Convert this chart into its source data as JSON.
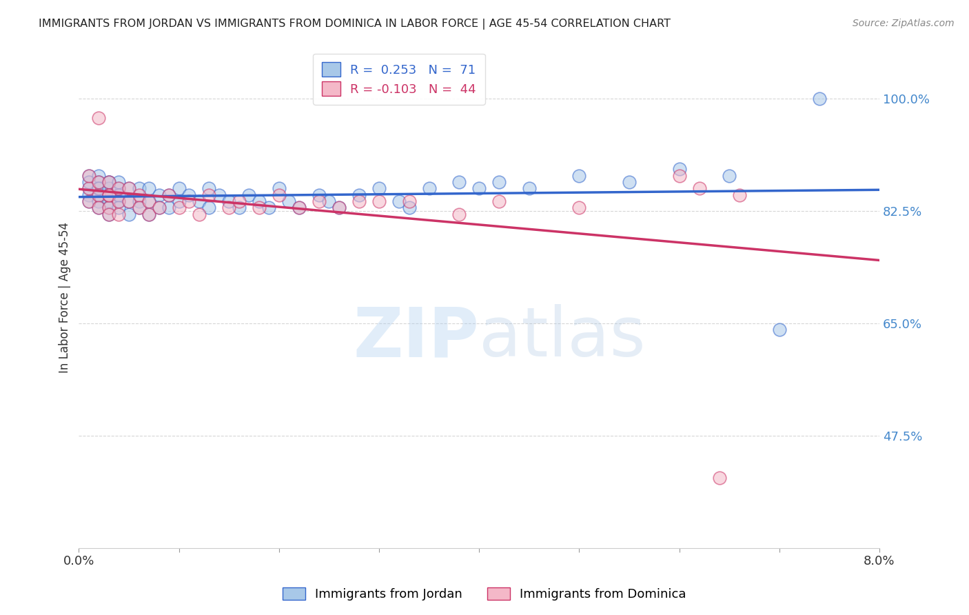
{
  "title": "IMMIGRANTS FROM JORDAN VS IMMIGRANTS FROM DOMINICA IN LABOR FORCE | AGE 45-54 CORRELATION CHART",
  "source": "Source: ZipAtlas.com",
  "ylabel": "In Labor Force | Age 45-54",
  "xlim": [
    0.0,
    0.08
  ],
  "ylim": [
    0.3,
    1.08
  ],
  "xticks": [
    0.0,
    0.01,
    0.02,
    0.03,
    0.04,
    0.05,
    0.06,
    0.07,
    0.08
  ],
  "xticklabels": [
    "0.0%",
    "",
    "",
    "",
    "",
    "",
    "",
    "",
    "8.0%"
  ],
  "ytick_positions": [
    0.475,
    0.65,
    0.825,
    1.0
  ],
  "ytick_labels": [
    "47.5%",
    "65.0%",
    "82.5%",
    "100.0%"
  ],
  "jordan_R": 0.253,
  "jordan_N": 71,
  "dominica_R": -0.103,
  "dominica_N": 44,
  "jordan_color": "#a8c8e8",
  "dominica_color": "#f4b8c8",
  "jordan_line_color": "#3366cc",
  "dominica_line_color": "#cc3366",
  "legend_label_jordan": "Immigrants from Jordan",
  "legend_label_dominica": "Immigrants from Dominica",
  "background_color": "#ffffff",
  "grid_color": "#cccccc",
  "jordan_x": [
    0.001,
    0.001,
    0.001,
    0.001,
    0.001,
    0.002,
    0.002,
    0.002,
    0.002,
    0.002,
    0.002,
    0.002,
    0.003,
    0.003,
    0.003,
    0.003,
    0.003,
    0.003,
    0.003,
    0.003,
    0.004,
    0.004,
    0.004,
    0.004,
    0.004,
    0.005,
    0.005,
    0.005,
    0.006,
    0.006,
    0.006,
    0.007,
    0.007,
    0.007,
    0.008,
    0.008,
    0.009,
    0.009,
    0.01,
    0.01,
    0.011,
    0.012,
    0.013,
    0.013,
    0.014,
    0.015,
    0.016,
    0.017,
    0.018,
    0.019,
    0.02,
    0.021,
    0.022,
    0.024,
    0.025,
    0.026,
    0.028,
    0.03,
    0.032,
    0.033,
    0.035,
    0.038,
    0.04,
    0.042,
    0.045,
    0.05,
    0.055,
    0.06,
    0.065,
    0.07,
    0.074
  ],
  "jordan_y": [
    0.86,
    0.88,
    0.85,
    0.87,
    0.84,
    0.88,
    0.86,
    0.85,
    0.87,
    0.84,
    0.86,
    0.83,
    0.87,
    0.85,
    0.84,
    0.86,
    0.83,
    0.87,
    0.85,
    0.82,
    0.86,
    0.84,
    0.87,
    0.85,
    0.83,
    0.86,
    0.84,
    0.82,
    0.86,
    0.84,
    0.83,
    0.86,
    0.84,
    0.82,
    0.85,
    0.83,
    0.85,
    0.83,
    0.86,
    0.84,
    0.85,
    0.84,
    0.86,
    0.83,
    0.85,
    0.84,
    0.83,
    0.85,
    0.84,
    0.83,
    0.86,
    0.84,
    0.83,
    0.85,
    0.84,
    0.83,
    0.85,
    0.86,
    0.84,
    0.83,
    0.86,
    0.87,
    0.86,
    0.87,
    0.86,
    0.88,
    0.87,
    0.89,
    0.88,
    0.64,
    1.0
  ],
  "dominica_x": [
    0.001,
    0.001,
    0.001,
    0.002,
    0.002,
    0.002,
    0.002,
    0.003,
    0.003,
    0.003,
    0.003,
    0.003,
    0.004,
    0.004,
    0.004,
    0.005,
    0.005,
    0.006,
    0.006,
    0.007,
    0.007,
    0.008,
    0.009,
    0.01,
    0.011,
    0.012,
    0.013,
    0.015,
    0.016,
    0.018,
    0.02,
    0.022,
    0.024,
    0.026,
    0.028,
    0.03,
    0.033,
    0.038,
    0.042,
    0.05,
    0.06,
    0.062,
    0.064,
    0.066
  ],
  "dominica_y": [
    0.86,
    0.88,
    0.84,
    0.87,
    0.85,
    0.83,
    0.97,
    0.85,
    0.87,
    0.83,
    0.85,
    0.82,
    0.84,
    0.86,
    0.82,
    0.84,
    0.86,
    0.85,
    0.83,
    0.84,
    0.82,
    0.83,
    0.85,
    0.83,
    0.84,
    0.82,
    0.85,
    0.83,
    0.84,
    0.83,
    0.85,
    0.83,
    0.84,
    0.83,
    0.84,
    0.84,
    0.84,
    0.82,
    0.84,
    0.83,
    0.88,
    0.86,
    0.41,
    0.85
  ]
}
